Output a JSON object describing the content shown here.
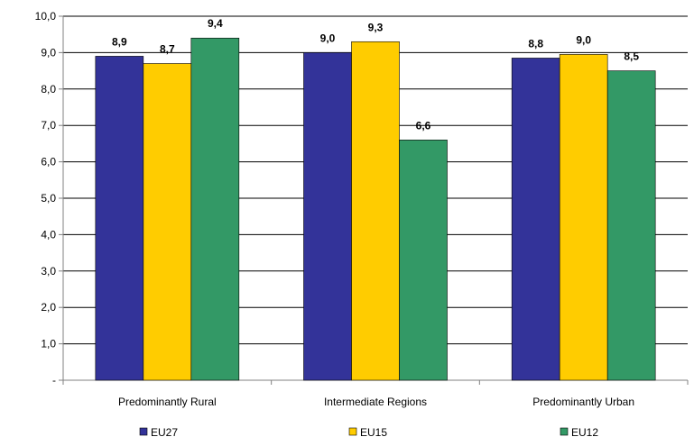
{
  "chart_data": {
    "type": "bar",
    "title": "",
    "xlabel": "",
    "ylabel": "",
    "ylim": [
      0,
      10
    ],
    "y_ticks": [
      {
        "value": 0,
        "label": "-"
      },
      {
        "value": 1,
        "label": "1,0"
      },
      {
        "value": 2,
        "label": "2,0"
      },
      {
        "value": 3,
        "label": "3,0"
      },
      {
        "value": 4,
        "label": "4,0"
      },
      {
        "value": 5,
        "label": "5,0"
      },
      {
        "value": 6,
        "label": "6,0"
      },
      {
        "value": 7,
        "label": "7,0"
      },
      {
        "value": 8,
        "label": "8,0"
      },
      {
        "value": 9,
        "label": "9,0"
      },
      {
        "value": 10,
        "label": "10,0"
      }
    ],
    "grid": true,
    "legend_position": "bottom",
    "categories": [
      "Predominantly Rural",
      "Intermediate Regions",
      "Predominantly Urban"
    ],
    "series": [
      {
        "name": "EU27",
        "color": "#333399",
        "values": [
          8.9,
          9.0,
          8.85
        ],
        "labels": [
          "8,9",
          "9,0",
          "8,8"
        ]
      },
      {
        "name": "EU15",
        "color": "#FFCC00",
        "values": [
          8.7,
          9.3,
          8.95
        ],
        "labels": [
          "8,7",
          "9,3",
          "9,0"
        ]
      },
      {
        "name": "EU12",
        "color": "#339966",
        "values": [
          9.4,
          6.6,
          8.5
        ],
        "labels": [
          "9,4",
          "6,6",
          "8,5"
        ]
      }
    ]
  }
}
